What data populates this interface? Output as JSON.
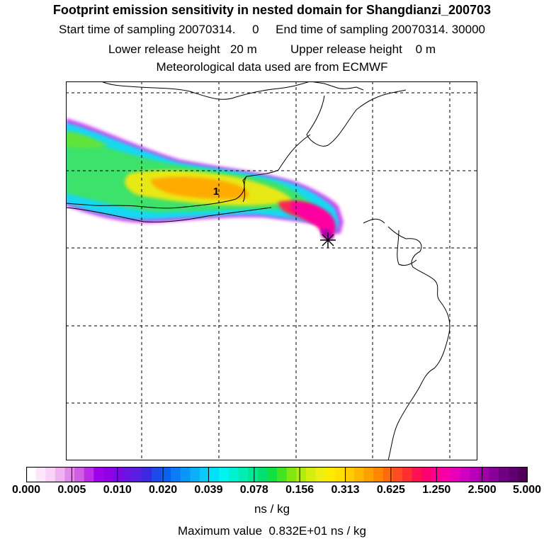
{
  "header": {
    "title": "Footprint emission sensitivity in nested domain for Shangdianzi_200703",
    "line2": "Start time of sampling 20070314.     0     End time of sampling 20070314. 30000",
    "line3": "Lower release height   20 m          Upper release height    0 m",
    "line4": "Meteorological data used are from ECMWF"
  },
  "map": {
    "marker_label": "1",
    "station_icon": "station-star-icon",
    "grid": "on",
    "grid_style": "dashed"
  },
  "colorbar": {
    "tick_labels": [
      "0.000",
      "0.005",
      "0.010",
      "0.020",
      "0.039",
      "0.078",
      "0.156",
      "0.313",
      "0.625",
      "1.250",
      "2.500",
      "5.000"
    ],
    "colors": [
      "#ffffff",
      "#fde6fb",
      "#f9d2f7",
      "#f1b2f1",
      "#e28ae9",
      "#d05ee3",
      "#bb2ee6",
      "#a100ea",
      "#9200e6",
      "#7c08e6",
      "#6a14e2",
      "#5a1ee0",
      "#3c28e0",
      "#1e4ae8",
      "#0a62f0",
      "#0a7cf4",
      "#0a96f6",
      "#0ab0f8",
      "#0ac8f8",
      "#00e0f6",
      "#00f4f0",
      "#00f2d2",
      "#00eeb2",
      "#00e894",
      "#00e070",
      "#10e040",
      "#40e420",
      "#80e810",
      "#b0ec10",
      "#d4ee10",
      "#eeee10",
      "#fcec00",
      "#ffe000",
      "#ffcc00",
      "#ffb800",
      "#ffa000",
      "#ff8800",
      "#ff6a10",
      "#ff4c20",
      "#ff2e30",
      "#ff1050",
      "#ff0070",
      "#ff0090",
      "#f800a8",
      "#e800b8",
      "#d000c0",
      "#b800b8",
      "#a000a8",
      "#880098",
      "#700084",
      "#600070",
      "#500058"
    ],
    "units": "ns / kg",
    "max_value": "Maximum value  0.832E+01 ns / kg"
  }
}
